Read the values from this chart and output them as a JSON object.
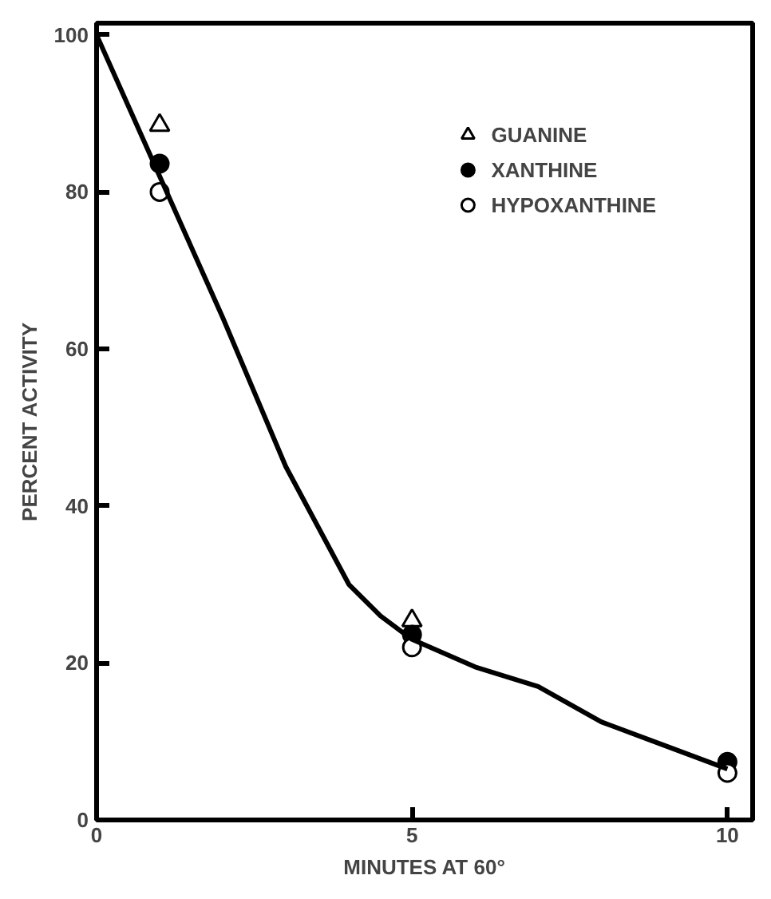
{
  "chart_data": {
    "type": "scatter",
    "xlabel": "MINUTES AT 60°",
    "ylabel": "PERCENT ACTIVITY",
    "x": [
      1,
      5,
      10
    ],
    "series": [
      {
        "name": "GUANINE",
        "color": "#ffffff",
        "marker": "triangle",
        "values": [
          88.5,
          25.4,
          null
        ]
      },
      {
        "name": "XANTHINE",
        "color": "#000000",
        "marker": "circle",
        "values": [
          83.6,
          23.6,
          7.4
        ]
      },
      {
        "name": "HYPOXANTHINE",
        "color": "#ffffff",
        "marker": "circle",
        "values": [
          80,
          22,
          6
        ]
      },
      {
        "type": "line",
        "color": "#000000",
        "x": [
          0,
          1,
          2,
          3,
          4,
          4.5,
          5,
          6,
          7,
          8,
          9,
          10
        ],
        "values": [
          100,
          82,
          64,
          45,
          30,
          26,
          23,
          19.5,
          17,
          12.5,
          9.5,
          6.5
        ]
      }
    ],
    "xlim": [
      0,
      10.4
    ],
    "xticks": [
      0,
      5,
      10
    ],
    "ylim": [
      0,
      101.5
    ],
    "yticks": [
      0,
      20,
      40,
      60,
      80,
      100
    ],
    "grid": false,
    "legend": "top right"
  }
}
